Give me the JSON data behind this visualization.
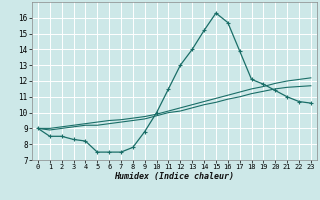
{
  "xlabel": "Humidex (Indice chaleur)",
  "xlim": [
    -0.5,
    23.5
  ],
  "ylim": [
    7,
    17
  ],
  "yticks": [
    7,
    8,
    9,
    10,
    11,
    12,
    13,
    14,
    15,
    16
  ],
  "xticks": [
    0,
    1,
    2,
    3,
    4,
    5,
    6,
    7,
    8,
    9,
    10,
    11,
    12,
    13,
    14,
    15,
    16,
    17,
    18,
    19,
    20,
    21,
    22,
    23
  ],
  "bg_color": "#cde8e8",
  "grid_color": "#ffffff",
  "line_color": "#1a6e68",
  "line1_x": [
    0,
    1,
    2,
    3,
    4,
    5,
    6,
    7,
    8,
    9,
    10,
    11,
    12,
    13,
    14,
    15,
    16,
    17,
    18,
    19,
    20,
    21,
    22,
    23
  ],
  "line1_y": [
    9.0,
    8.5,
    8.5,
    8.3,
    8.2,
    7.5,
    7.5,
    7.5,
    7.8,
    8.8,
    10.0,
    11.5,
    13.0,
    14.0,
    15.2,
    16.3,
    15.7,
    13.9,
    12.1,
    11.8,
    11.4,
    11.0,
    10.7,
    10.6
  ],
  "line2_x": [
    0,
    1,
    2,
    3,
    4,
    5,
    6,
    7,
    8,
    9,
    10,
    11,
    12,
    13,
    14,
    15,
    16,
    17,
    18,
    19,
    20,
    21,
    22,
    23
  ],
  "line2_y": [
    9.0,
    8.9,
    9.0,
    9.1,
    9.2,
    9.2,
    9.3,
    9.4,
    9.5,
    9.6,
    9.8,
    10.0,
    10.1,
    10.3,
    10.5,
    10.65,
    10.85,
    11.0,
    11.2,
    11.35,
    11.5,
    11.6,
    11.65,
    11.7
  ],
  "line3_x": [
    0,
    1,
    2,
    3,
    4,
    5,
    6,
    7,
    8,
    9,
    10,
    11,
    12,
    13,
    14,
    15,
    16,
    17,
    18,
    19,
    20,
    21,
    22,
    23
  ],
  "line3_y": [
    9.0,
    9.0,
    9.1,
    9.2,
    9.3,
    9.4,
    9.5,
    9.55,
    9.65,
    9.75,
    9.9,
    10.1,
    10.3,
    10.5,
    10.7,
    10.9,
    11.1,
    11.3,
    11.5,
    11.65,
    11.85,
    12.0,
    12.1,
    12.2
  ]
}
